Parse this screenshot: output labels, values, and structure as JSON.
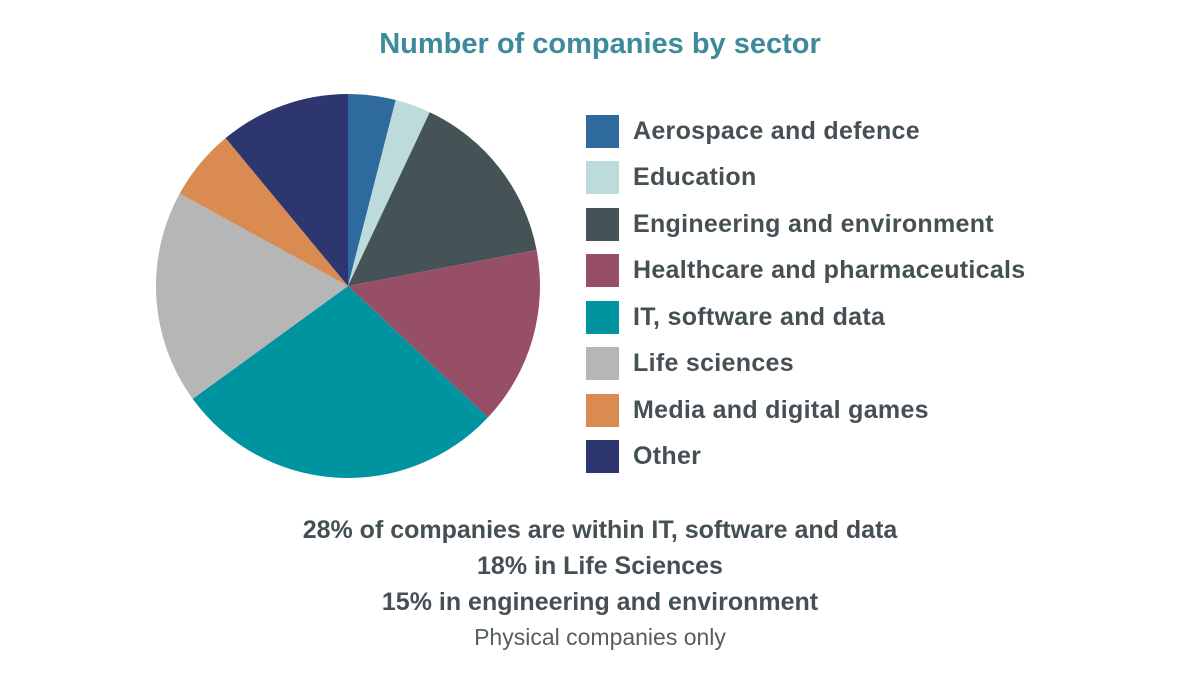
{
  "chart_data": {
    "type": "pie",
    "title": "Number of companies by sector",
    "start_angle": "12 o'clock, clockwise",
    "legend_position": "right",
    "slices": [
      {
        "label": "Aerospace and defence",
        "value": 4,
        "color": "#2e6a9e"
      },
      {
        "label": "Education",
        "value": 3,
        "color": "#bcdcdc"
      },
      {
        "label": "Engineering and environment",
        "value": 15,
        "color": "#455357"
      },
      {
        "label": "Healthcare and pharmaceuticals",
        "value": 15,
        "color": "#974f68"
      },
      {
        "label": "IT, software and data",
        "value": 28,
        "color": "#0093a0"
      },
      {
        "label": "Life sciences",
        "value": 18,
        "color": "#b6b6b6"
      },
      {
        "label": "Media and digital games",
        "value": 6,
        "color": "#d98b52"
      },
      {
        "label": "Other",
        "value": 11,
        "color": "#2d366e"
      }
    ]
  },
  "notes": [
    "28% of companies are within IT, software and data",
    "18% in Life Sciences",
    "15% in engineering and environment"
  ],
  "footnote": "Physical companies only"
}
